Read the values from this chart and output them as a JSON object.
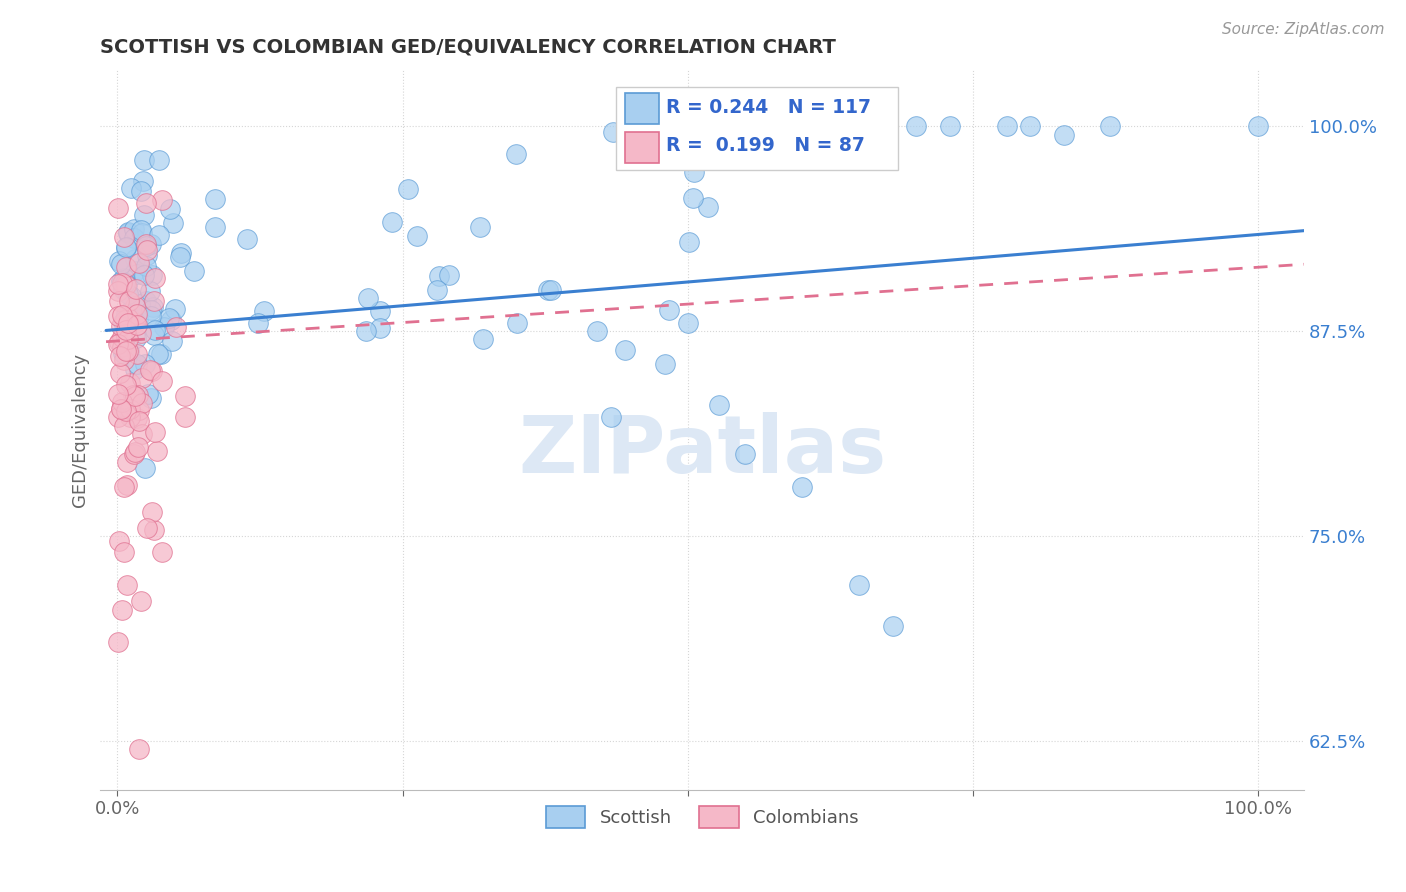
{
  "title": "SCOTTISH VS COLOMBIAN GED/EQUIVALENCY CORRELATION CHART",
  "source": "Source: ZipAtlas.com",
  "ylabel": "GED/Equivalency",
  "R_scottish": 0.244,
  "N_scottish": 117,
  "R_colombian": 0.199,
  "N_colombian": 87,
  "scottish_fill": "#A8CFF0",
  "scottish_edge": "#5B9BD5",
  "colombian_fill": "#F5B8C8",
  "colombian_edge": "#E07090",
  "trend_blue": "#3A7FD0",
  "trend_pink": "#E07090",
  "legend_scottish": "Scottish",
  "legend_colombian": "Colombians",
  "watermark": "ZIPatlas",
  "xlim": [
    -0.015,
    1.04
  ],
  "ylim": [
    0.595,
    1.035
  ],
  "yticks": [
    0.625,
    0.75,
    0.875,
    1.0
  ],
  "ytick_labels": [
    "62.5%",
    "75.0%",
    "87.5%",
    "100.0%"
  ],
  "xticks": [
    0.0,
    0.25,
    0.5,
    0.75,
    1.0
  ],
  "xtick_labels": [
    "0.0%",
    "",
    "",
    "",
    "100.0%"
  ],
  "scot_seed": 42,
  "col_seed": 7
}
